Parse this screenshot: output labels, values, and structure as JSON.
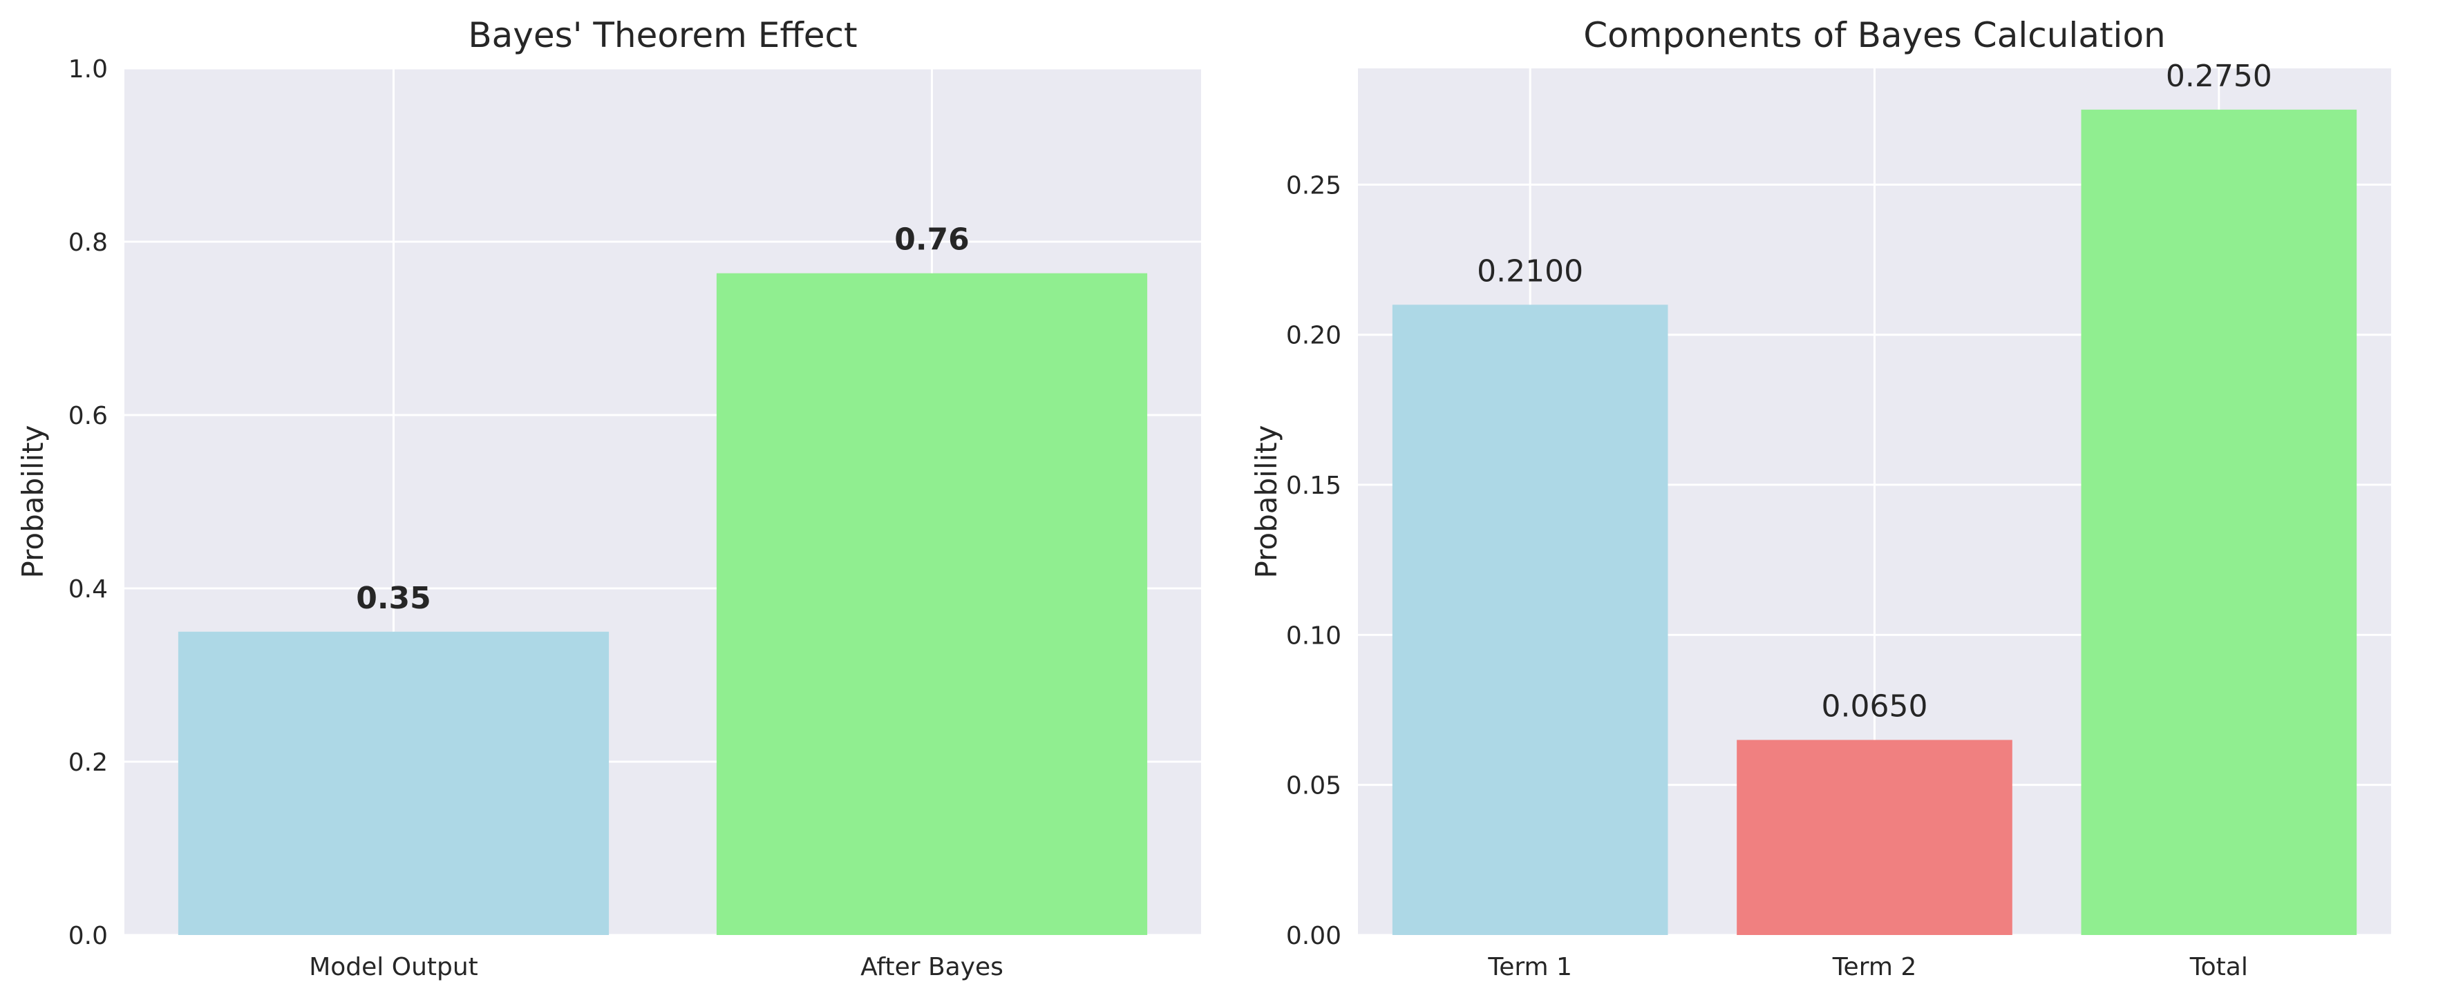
{
  "chart_data": [
    {
      "type": "bar",
      "title": "Bayes' Theorem Effect",
      "xlabel": "",
      "ylabel": "Probability",
      "categories": [
        "Model Output",
        "After Bayes"
      ],
      "values": [
        0.35,
        0.7636
      ],
      "value_labels": [
        "0.35",
        "0.76"
      ],
      "value_label_weight": "bold",
      "colors": [
        "#add8e6",
        "#90ee90"
      ],
      "ylim": [
        0,
        1.0
      ],
      "yticks": [
        "0.0",
        "0.2",
        "0.4",
        "0.6",
        "0.8",
        "1.0"
      ],
      "grid": true,
      "background": "#eaeaf2"
    },
    {
      "type": "bar",
      "title": "Components of Bayes Calculation",
      "xlabel": "",
      "ylabel": "Probability",
      "categories": [
        "Term 1",
        "Term 2",
        "Total"
      ],
      "values": [
        0.21,
        0.065,
        0.275
      ],
      "value_labels": [
        "0.2100",
        "0.0650",
        "0.2750"
      ],
      "value_label_weight": "normal",
      "colors": [
        "#add8e6",
        "#f08080",
        "#90ee90"
      ],
      "ylim": [
        0,
        0.28875
      ],
      "yticks": [
        "0.00",
        "0.05",
        "0.10",
        "0.15",
        "0.20",
        "0.25"
      ],
      "grid": true,
      "background": "#eaeaf2"
    }
  ]
}
